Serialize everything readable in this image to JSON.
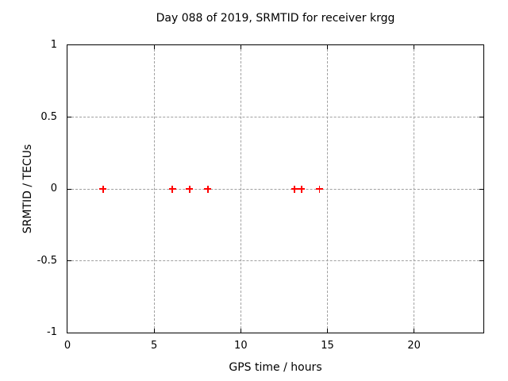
{
  "colors": {
    "background": "#ffffff",
    "frame": "#000000",
    "grid": "#a0a0a0",
    "text": "#000000",
    "marker": "#ff0000"
  },
  "chart_data": {
    "type": "scatter",
    "title": "Day 088 of 2019, SRMTID for receiver krgg",
    "xlabel": "GPS time / hours",
    "ylabel": "SRMTID / TECUs",
    "xlim": [
      0,
      24
    ],
    "ylim": [
      -1,
      1
    ],
    "xticks": [
      0,
      5,
      10,
      15,
      20
    ],
    "yticks": [
      -1,
      -0.5,
      0,
      0.5,
      1
    ],
    "grid": true,
    "legend": "none",
    "marker_style": "plus",
    "series": [
      {
        "name": "SRMTID",
        "color": "#ff0000",
        "points": [
          {
            "x": 2.06,
            "y": 0
          },
          {
            "x": 6.05,
            "y": 0
          },
          {
            "x": 7.05,
            "y": 0
          },
          {
            "x": 8.1,
            "y": 0
          },
          {
            "x": 13.1,
            "y": 0
          },
          {
            "x": 13.5,
            "y": 0
          },
          {
            "x": 14.55,
            "y": 0
          }
        ]
      }
    ]
  }
}
